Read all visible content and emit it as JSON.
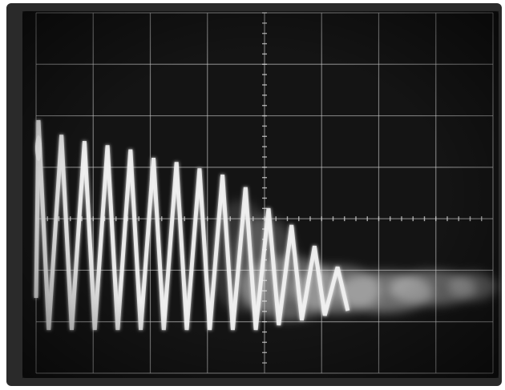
{
  "screen": {
    "background_color": "#141414",
    "bezel_color": "#2a2a2a",
    "graticule_color": "#cfcfcf",
    "trace_color": "#f2f2f2",
    "haze_color": "#e6e6e6",
    "major_divisions_x": 8,
    "major_divisions_y": 7,
    "minor_ticks_per_division": 5
  },
  "trace": {
    "description_type": "damped-sawtooth",
    "peak_count": 14,
    "amplitude_levels": [
      1.0,
      0.93,
      0.9,
      0.88,
      0.86,
      0.82,
      0.8,
      0.77,
      0.74,
      0.68,
      0.58,
      0.5,
      0.4,
      0.3
    ],
    "noise_tail": true
  }
}
